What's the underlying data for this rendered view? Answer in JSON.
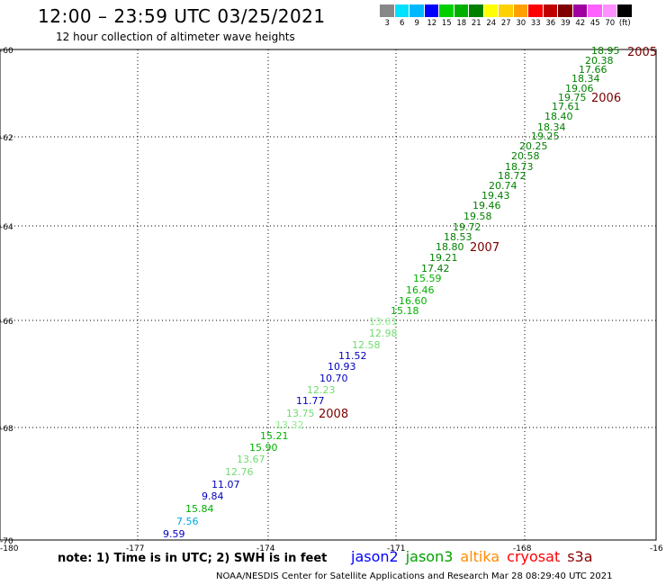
{
  "header": {
    "title": "12:00 – 23:59 UTC 03/25/2021",
    "subtitle": "12 hour collection of altimeter wave heights"
  },
  "colorbar": {
    "colors": [
      "#888888",
      "#00e0ff",
      "#00b8ff",
      "#0000ff",
      "#00d000",
      "#00b000",
      "#008000",
      "#ffff00",
      "#ffd000",
      "#ffa000",
      "#ff0000",
      "#c00000",
      "#800000",
      "#a000a0",
      "#ff60ff",
      "#ff90ff",
      "#000000"
    ],
    "labels": [
      "3",
      "6",
      "9",
      "12",
      "15",
      "18",
      "21",
      "24",
      "27",
      "30",
      "33",
      "36",
      "39",
      "42",
      "45",
      "70",
      "(ft)"
    ]
  },
  "map": {
    "lon_labels": [
      "-180",
      "-177",
      "-174",
      "-171",
      "-168",
      "-16"
    ],
    "lat_labels": [
      "-60",
      "-62",
      "-64",
      "-66",
      "-68",
      "-70"
    ]
  },
  "track": {
    "points": [
      {
        "v": "18.95",
        "c": "#008000"
      },
      {
        "v": "20.38",
        "c": "#008000"
      },
      {
        "v": "17.66",
        "c": "#008000"
      },
      {
        "v": "18.34",
        "c": "#008000"
      },
      {
        "v": "19.06",
        "c": "#008000"
      },
      {
        "v": "19.75",
        "c": "#008000"
      },
      {
        "v": "17.61",
        "c": "#008000"
      },
      {
        "v": "18.40",
        "c": "#008000"
      },
      {
        "v": "18.34",
        "c": "#008000"
      },
      {
        "v": "19.25",
        "c": "#008000"
      },
      {
        "v": "20.25",
        "c": "#008000"
      },
      {
        "v": "20.58",
        "c": "#008000"
      },
      {
        "v": "18.73",
        "c": "#008000"
      },
      {
        "v": "18.72",
        "c": "#008000"
      },
      {
        "v": "20.74",
        "c": "#008000"
      },
      {
        "v": "19.43",
        "c": "#008000"
      },
      {
        "v": "19.46",
        "c": "#008000"
      },
      {
        "v": "19.58",
        "c": "#008000"
      },
      {
        "v": "19.72",
        "c": "#008000"
      },
      {
        "v": "18.53",
        "c": "#008000"
      },
      {
        "v": "18.80",
        "c": "#008000"
      },
      {
        "v": "19.21",
        "c": "#008000"
      },
      {
        "v": "17.42",
        "c": "#008000"
      },
      {
        "v": "15.59",
        "c": "#00b000"
      },
      {
        "v": "16.46",
        "c": "#00b000"
      },
      {
        "v": "16.60",
        "c": "#00b000"
      },
      {
        "v": "15.18",
        "c": "#00b000"
      },
      {
        "v": "13.61",
        "c": "#90ee90"
      },
      {
        "v": "12.98",
        "c": "#6fdc6f"
      },
      {
        "v": "12.58",
        "c": "#6fdc6f"
      },
      {
        "v": "11.52",
        "c": "#0000c0"
      },
      {
        "v": "10.93",
        "c": "#0000c0"
      },
      {
        "v": "10.70",
        "c": "#0000c0"
      },
      {
        "v": "12.23",
        "c": "#6fdc6f"
      },
      {
        "v": "11.77",
        "c": "#0000c0"
      },
      {
        "v": "13.75",
        "c": "#6fdc6f"
      },
      {
        "v": "13.32",
        "c": "#90ee90"
      },
      {
        "v": "15.21",
        "c": "#00b000"
      },
      {
        "v": "15.90",
        "c": "#00b000"
      },
      {
        "v": "13.67",
        "c": "#6fdc6f"
      },
      {
        "v": "12.76",
        "c": "#6fdc6f"
      },
      {
        "v": "11.07",
        "c": "#0000c0"
      },
      {
        "v": "9.84",
        "c": "#0000c0"
      },
      {
        "v": "15.84",
        "c": "#00b000"
      },
      {
        "v": "7.56",
        "c": "#00a8e0"
      },
      {
        "v": "9.59",
        "c": "#0000c0"
      }
    ],
    "time_marks": [
      "2005",
      "2006",
      "2007",
      "2008"
    ]
  },
  "note": "note: 1) Time is in UTC; 2) SWH is in feet",
  "satellites": [
    {
      "name": "jason2",
      "color": "#0000ff"
    },
    {
      "name": "jason3",
      "color": "#00a000"
    },
    {
      "name": "altika",
      "color": "#ff8c00"
    },
    {
      "name": "cryosat",
      "color": "#ff0000"
    },
    {
      "name": "s3a",
      "color": "#8b0000"
    }
  ],
  "footer": "NOAA/NESDIS Center for Satellite Applications and Research     Mar 28 08:29:40 UTC 2021"
}
